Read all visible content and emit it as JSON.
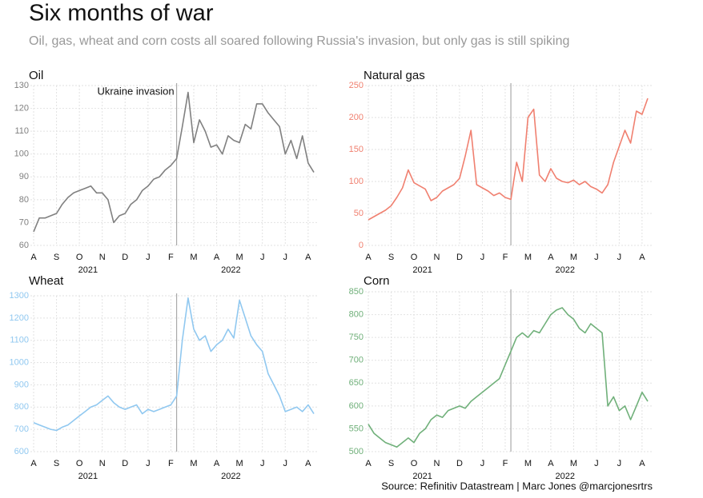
{
  "title": "Six months of war",
  "subtitle": "Oil, gas, wheat and corn costs all soared following Russia's invasion, but only gas is still spiking",
  "source": "Source: Refinitiv Datastream | Marc Jones @marcjonesrtrs",
  "chart_data": [
    {
      "type": "line",
      "title": "Oil",
      "color": "#808080",
      "annotation": "Ukraine invasion",
      "event_index": 25,
      "categories": [
        "A",
        null,
        null,
        null,
        "S",
        null,
        null,
        null,
        "O",
        null,
        null,
        null,
        "N",
        null,
        null,
        null,
        "D",
        null,
        null,
        null,
        "J",
        null,
        null,
        null,
        "F",
        null,
        null,
        null,
        "M",
        null,
        null,
        null,
        "A",
        null,
        null,
        null,
        "M",
        null,
        null,
        null,
        "J",
        null,
        null,
        null,
        "J",
        null,
        null,
        null,
        "A",
        null
      ],
      "year_labels": [
        "2021",
        "2022"
      ],
      "values": [
        66,
        72,
        72,
        73,
        74,
        78,
        81,
        83,
        84,
        85,
        86,
        83,
        83,
        80,
        70,
        73,
        74,
        78,
        80,
        84,
        86,
        89,
        90,
        93,
        95,
        98,
        112,
        127,
        105,
        115,
        110,
        103,
        104,
        100,
        108,
        106,
        105,
        113,
        111,
        122,
        122,
        118,
        115,
        112,
        100,
        106,
        98,
        108,
        96,
        92
      ],
      "ylim": [
        60,
        130
      ],
      "yticks": [
        60,
        70,
        80,
        90,
        100,
        110,
        120,
        130
      ],
      "grid": true
    },
    {
      "type": "line",
      "title": "Natural gas",
      "color": "#f08070",
      "event_index": 25,
      "categories": [
        "A",
        null,
        null,
        null,
        "S",
        null,
        null,
        null,
        "O",
        null,
        null,
        null,
        "N",
        null,
        null,
        null,
        "D",
        null,
        null,
        null,
        "J",
        null,
        null,
        null,
        "F",
        null,
        null,
        null,
        "M",
        null,
        null,
        null,
        "A",
        null,
        null,
        null,
        "M",
        null,
        null,
        null,
        "J",
        null,
        null,
        null,
        "J",
        null,
        null,
        null,
        "A",
        null
      ],
      "year_labels": [
        "2021",
        "2022"
      ],
      "values": [
        40,
        45,
        50,
        55,
        62,
        75,
        90,
        118,
        98,
        93,
        88,
        70,
        75,
        85,
        90,
        95,
        105,
        140,
        180,
        95,
        90,
        85,
        78,
        82,
        75,
        72,
        130,
        100,
        200,
        213,
        110,
        100,
        120,
        105,
        100,
        98,
        102,
        95,
        100,
        92,
        88,
        82,
        95,
        130,
        155,
        180,
        160,
        210,
        205,
        230
      ],
      "ylim": [
        0,
        250
      ],
      "yticks": [
        0,
        50,
        100,
        150,
        200,
        250
      ],
      "grid": true
    },
    {
      "type": "line",
      "title": "Wheat",
      "color": "#90c8f0",
      "event_index": 25,
      "categories": [
        "A",
        null,
        null,
        null,
        "S",
        null,
        null,
        null,
        "O",
        null,
        null,
        null,
        "N",
        null,
        null,
        null,
        "D",
        null,
        null,
        null,
        "J",
        null,
        null,
        null,
        "F",
        null,
        null,
        null,
        "M",
        null,
        null,
        null,
        "A",
        null,
        null,
        null,
        "M",
        null,
        null,
        null,
        "J",
        null,
        null,
        null,
        "J",
        null,
        null,
        null,
        "A",
        null
      ],
      "year_labels": [
        "2021",
        "2022"
      ],
      "values": [
        730,
        720,
        710,
        700,
        695,
        710,
        720,
        740,
        760,
        780,
        800,
        810,
        830,
        850,
        820,
        800,
        790,
        800,
        810,
        770,
        790,
        780,
        790,
        800,
        810,
        850,
        1100,
        1290,
        1150,
        1100,
        1120,
        1050,
        1080,
        1100,
        1150,
        1110,
        1280,
        1200,
        1120,
        1080,
        1050,
        950,
        900,
        850,
        780,
        790,
        800,
        780,
        810,
        770
      ],
      "ylim": [
        600,
        1300
      ],
      "yticks": [
        600,
        700,
        800,
        900,
        1000,
        1100,
        1200,
        1300
      ],
      "grid": true
    },
    {
      "type": "line",
      "title": "Corn",
      "color": "#70b07a",
      "event_index": 25,
      "categories": [
        "A",
        null,
        null,
        null,
        "S",
        null,
        null,
        null,
        "O",
        null,
        null,
        null,
        "N",
        null,
        null,
        null,
        "D",
        null,
        null,
        null,
        "J",
        null,
        null,
        null,
        "F",
        null,
        null,
        null,
        "M",
        null,
        null,
        null,
        "A",
        null,
        null,
        null,
        "M",
        null,
        null,
        null,
        "J",
        null,
        null,
        null,
        "J",
        null,
        null,
        null,
        "A",
        null
      ],
      "year_labels": [
        "2021",
        "2022"
      ],
      "values": [
        560,
        540,
        530,
        520,
        515,
        510,
        520,
        530,
        520,
        540,
        550,
        570,
        580,
        575,
        590,
        595,
        600,
        595,
        610,
        620,
        630,
        640,
        650,
        660,
        690,
        720,
        750,
        760,
        750,
        765,
        760,
        780,
        800,
        810,
        815,
        800,
        790,
        770,
        760,
        780,
        770,
        760,
        600,
        620,
        590,
        600,
        570,
        600,
        630,
        610
      ],
      "ylim": [
        500,
        850
      ],
      "yticks": [
        500,
        550,
        600,
        650,
        700,
        750,
        800,
        850
      ],
      "grid": true
    }
  ]
}
